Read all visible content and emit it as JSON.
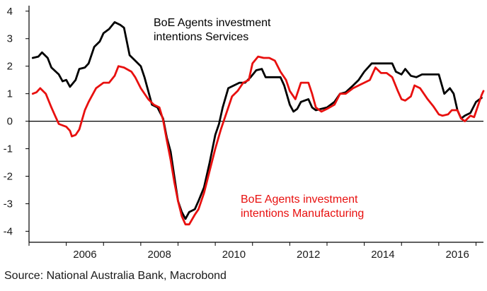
{
  "chart_data": {
    "type": "line",
    "x_unit": "year",
    "xlim": [
      2005.0,
      2017.2
    ],
    "ylim": [
      -4.4,
      4.2
    ],
    "x_ticks": [
      2006,
      2008,
      2010,
      2012,
      2014,
      2016
    ],
    "y_ticks": [
      -4,
      -3,
      -2,
      -1,
      0,
      1,
      2,
      3,
      4
    ],
    "zero_line": true,
    "grid": false,
    "annotations": [
      {
        "lines": [
          "BoE Agents investment",
          "intentions Services"
        ],
        "color": "#000000",
        "series": 0
      },
      {
        "lines": [
          "BoE Agents investment",
          "intentions Manufacturing"
        ],
        "color": "#e8100f",
        "series": 1
      }
    ],
    "series": [
      {
        "name": "BoE Agents investment intentions Services",
        "color": "#000000",
        "points": [
          [
            2005.1,
            2.3
          ],
          [
            2005.25,
            2.35
          ],
          [
            2005.35,
            2.5
          ],
          [
            2005.5,
            2.3
          ],
          [
            2005.6,
            1.95
          ],
          [
            2005.8,
            1.7
          ],
          [
            2005.9,
            1.45
          ],
          [
            2006.0,
            1.5
          ],
          [
            2006.1,
            1.25
          ],
          [
            2006.25,
            1.5
          ],
          [
            2006.35,
            1.9
          ],
          [
            2006.5,
            1.95
          ],
          [
            2006.6,
            2.1
          ],
          [
            2006.75,
            2.7
          ],
          [
            2006.9,
            2.9
          ],
          [
            2007.0,
            3.2
          ],
          [
            2007.15,
            3.35
          ],
          [
            2007.3,
            3.6
          ],
          [
            2007.45,
            3.5
          ],
          [
            2007.55,
            3.4
          ],
          [
            2007.7,
            2.4
          ],
          [
            2007.85,
            2.2
          ],
          [
            2008.0,
            2.0
          ],
          [
            2008.1,
            1.6
          ],
          [
            2008.3,
            0.6
          ],
          [
            2008.45,
            0.5
          ],
          [
            2008.6,
            0.1
          ],
          [
            2008.7,
            -0.6
          ],
          [
            2008.8,
            -1.1
          ],
          [
            2008.9,
            -2.0
          ],
          [
            2009.0,
            -2.9
          ],
          [
            2009.1,
            -3.3
          ],
          [
            2009.2,
            -3.55
          ],
          [
            2009.3,
            -3.3
          ],
          [
            2009.45,
            -3.2
          ],
          [
            2009.55,
            -2.9
          ],
          [
            2009.7,
            -2.4
          ],
          [
            2009.85,
            -1.5
          ],
          [
            2010.0,
            -0.5
          ],
          [
            2010.1,
            -0.1
          ],
          [
            2010.2,
            0.5
          ],
          [
            2010.35,
            1.2
          ],
          [
            2010.5,
            1.3
          ],
          [
            2010.65,
            1.4
          ],
          [
            2010.8,
            1.4
          ],
          [
            2010.95,
            1.6
          ],
          [
            2011.1,
            1.85
          ],
          [
            2011.25,
            1.9
          ],
          [
            2011.35,
            1.6
          ],
          [
            2011.6,
            1.6
          ],
          [
            2011.75,
            1.6
          ],
          [
            2011.85,
            1.3
          ],
          [
            2012.0,
            0.6
          ],
          [
            2012.1,
            0.35
          ],
          [
            2012.2,
            0.45
          ],
          [
            2012.3,
            0.7
          ],
          [
            2012.5,
            0.8
          ],
          [
            2012.6,
            0.5
          ],
          [
            2012.7,
            0.4
          ],
          [
            2012.85,
            0.45
          ],
          [
            2013.0,
            0.5
          ],
          [
            2013.2,
            0.7
          ],
          [
            2013.35,
            1.0
          ],
          [
            2013.5,
            1.05
          ],
          [
            2013.7,
            1.3
          ],
          [
            2013.85,
            1.5
          ],
          [
            2014.0,
            1.8
          ],
          [
            2014.2,
            2.1
          ],
          [
            2014.4,
            2.1
          ],
          [
            2014.6,
            2.1
          ],
          [
            2014.75,
            2.1
          ],
          [
            2014.85,
            1.8
          ],
          [
            2015.0,
            1.7
          ],
          [
            2015.1,
            1.9
          ],
          [
            2015.25,
            1.65
          ],
          [
            2015.4,
            1.6
          ],
          [
            2015.55,
            1.7
          ],
          [
            2015.7,
            1.7
          ],
          [
            2015.85,
            1.7
          ],
          [
            2016.0,
            1.7
          ],
          [
            2016.15,
            1.0
          ],
          [
            2016.3,
            1.2
          ],
          [
            2016.4,
            1.0
          ],
          [
            2016.5,
            0.4
          ],
          [
            2016.6,
            0.1
          ],
          [
            2016.7,
            0.2
          ],
          [
            2016.85,
            0.3
          ],
          [
            2017.0,
            0.7
          ],
          [
            2017.15,
            0.85
          ]
        ]
      },
      {
        "name": "BoE Agents investment intentions Manufacturing",
        "color": "#e8100f",
        "points": [
          [
            2005.1,
            1.0
          ],
          [
            2005.2,
            1.05
          ],
          [
            2005.3,
            1.2
          ],
          [
            2005.45,
            1.0
          ],
          [
            2005.6,
            0.5
          ],
          [
            2005.7,
            0.2
          ],
          [
            2005.8,
            -0.1
          ],
          [
            2006.0,
            -0.2
          ],
          [
            2006.1,
            -0.35
          ],
          [
            2006.15,
            -0.55
          ],
          [
            2006.25,
            -0.5
          ],
          [
            2006.35,
            -0.3
          ],
          [
            2006.5,
            0.4
          ],
          [
            2006.6,
            0.7
          ],
          [
            2006.8,
            1.2
          ],
          [
            2007.0,
            1.4
          ],
          [
            2007.15,
            1.4
          ],
          [
            2007.3,
            1.65
          ],
          [
            2007.4,
            2.0
          ],
          [
            2007.55,
            1.95
          ],
          [
            2007.75,
            1.8
          ],
          [
            2007.85,
            1.6
          ],
          [
            2008.0,
            1.2
          ],
          [
            2008.2,
            0.8
          ],
          [
            2008.35,
            0.6
          ],
          [
            2008.5,
            0.5
          ],
          [
            2008.6,
            0.05
          ],
          [
            2008.7,
            -0.7
          ],
          [
            2008.8,
            -1.4
          ],
          [
            2008.9,
            -2.2
          ],
          [
            2009.0,
            -2.9
          ],
          [
            2009.1,
            -3.45
          ],
          [
            2009.2,
            -3.75
          ],
          [
            2009.3,
            -3.75
          ],
          [
            2009.45,
            -3.4
          ],
          [
            2009.55,
            -3.2
          ],
          [
            2009.7,
            -2.6
          ],
          [
            2009.85,
            -1.8
          ],
          [
            2010.0,
            -1.0
          ],
          [
            2010.15,
            -0.3
          ],
          [
            2010.3,
            0.3
          ],
          [
            2010.45,
            0.9
          ],
          [
            2010.6,
            1.1
          ],
          [
            2010.75,
            1.4
          ],
          [
            2010.9,
            1.5
          ],
          [
            2011.0,
            2.1
          ],
          [
            2011.15,
            2.35
          ],
          [
            2011.3,
            2.3
          ],
          [
            2011.45,
            2.3
          ],
          [
            2011.6,
            2.2
          ],
          [
            2011.75,
            1.8
          ],
          [
            2011.9,
            1.5
          ],
          [
            2012.0,
            1.1
          ],
          [
            2012.15,
            0.8
          ],
          [
            2012.3,
            1.4
          ],
          [
            2012.5,
            1.4
          ],
          [
            2012.6,
            1.0
          ],
          [
            2012.7,
            0.5
          ],
          [
            2012.85,
            0.35
          ],
          [
            2013.0,
            0.45
          ],
          [
            2013.2,
            0.6
          ],
          [
            2013.35,
            1.0
          ],
          [
            2013.5,
            1.0
          ],
          [
            2013.7,
            1.2
          ],
          [
            2013.85,
            1.3
          ],
          [
            2014.0,
            1.4
          ],
          [
            2014.15,
            1.5
          ],
          [
            2014.3,
            1.95
          ],
          [
            2014.45,
            1.75
          ],
          [
            2014.6,
            1.75
          ],
          [
            2014.75,
            1.6
          ],
          [
            2014.9,
            1.1
          ],
          [
            2015.0,
            0.8
          ],
          [
            2015.1,
            0.75
          ],
          [
            2015.25,
            0.9
          ],
          [
            2015.35,
            1.3
          ],
          [
            2015.5,
            1.2
          ],
          [
            2015.7,
            0.8
          ],
          [
            2015.85,
            0.55
          ],
          [
            2016.0,
            0.25
          ],
          [
            2016.1,
            0.2
          ],
          [
            2016.25,
            0.25
          ],
          [
            2016.35,
            0.4
          ],
          [
            2016.5,
            0.4
          ],
          [
            2016.6,
            0.1
          ],
          [
            2016.7,
            0.0
          ],
          [
            2016.85,
            0.2
          ],
          [
            2016.95,
            0.15
          ],
          [
            2017.05,
            0.55
          ],
          [
            2017.15,
            0.95
          ],
          [
            2017.2,
            1.1
          ]
        ]
      }
    ]
  },
  "source": "Source: National Australia Bank, Macrobond"
}
